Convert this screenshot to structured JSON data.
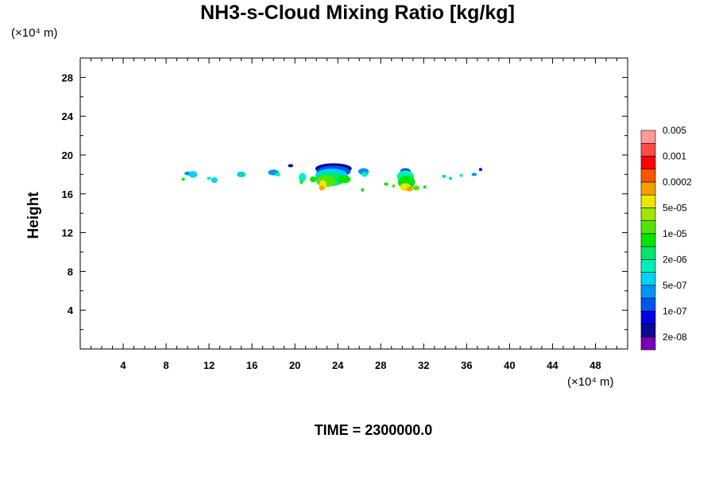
{
  "chart_data": {
    "type": "heatmap",
    "title": "NH3-s-Cloud Mixing Ratio [kg/kg]",
    "xlabel": "",
    "ylabel": "Height",
    "x_multiplier": "(×10⁴ m)",
    "y_multiplier": "(×10⁴ m)",
    "time_label": "TIME = 2300000.0",
    "xlim": [
      0,
      51
    ],
    "ylim": [
      0,
      30
    ],
    "x_ticks": [
      4,
      8,
      12,
      16,
      20,
      24,
      28,
      32,
      36,
      40,
      44,
      48
    ],
    "y_ticks": [
      4,
      8,
      12,
      16,
      20,
      24,
      28
    ],
    "grid": false,
    "legend_placement": "right",
    "colorbar": {
      "colors": [
        "#7a00b4",
        "#0a0a96",
        "#0000e6",
        "#0055ee",
        "#0095f5",
        "#00d2f5",
        "#00f0bc",
        "#00e66e",
        "#00e600",
        "#55e600",
        "#a0e600",
        "#f0e600",
        "#f5a000",
        "#ff5500",
        "#ff0000",
        "#ff4a4a",
        "#ff9a9a"
      ],
      "labels": [
        "2e-08",
        "1e-07",
        "5e-07",
        "2e-06",
        "1e-05",
        "5e-05",
        "0.0002",
        "0.001",
        "0.005"
      ]
    },
    "blobs": [
      {
        "x": 9.6,
        "y": 17.5,
        "rx": 0.15,
        "ry": 0.15,
        "level": 8
      },
      {
        "x": 10.0,
        "y": 18.1,
        "rx": 0.3,
        "ry": 0.2,
        "level": 4
      },
      {
        "x": 10.5,
        "y": 18.0,
        "rx": 0.4,
        "ry": 0.35,
        "level": 5
      },
      {
        "x": 12.0,
        "y": 17.6,
        "rx": 0.2,
        "ry": 0.15,
        "level": 6
      },
      {
        "x": 12.5,
        "y": 17.4,
        "rx": 0.3,
        "ry": 0.3,
        "level": 5
      },
      {
        "x": 15.0,
        "y": 18.0,
        "rx": 0.4,
        "ry": 0.3,
        "level": 5
      },
      {
        "x": 15.2,
        "y": 17.9,
        "rx": 0.15,
        "ry": 0.15,
        "level": 7
      },
      {
        "x": 18.0,
        "y": 18.2,
        "rx": 0.5,
        "ry": 0.3,
        "level": 4
      },
      {
        "x": 18.4,
        "y": 18.0,
        "rx": 0.25,
        "ry": 0.2,
        "level": 6
      },
      {
        "x": 20.7,
        "y": 17.7,
        "rx": 0.35,
        "ry": 0.45,
        "level": 6
      },
      {
        "x": 20.6,
        "y": 17.2,
        "rx": 0.15,
        "ry": 0.15,
        "level": 8
      },
      {
        "x": 19.6,
        "y": 18.9,
        "rx": 0.25,
        "ry": 0.12,
        "level": 1
      },
      {
        "x": 23.6,
        "y": 18.6,
        "rx": 1.7,
        "ry": 0.55,
        "level": 1
      },
      {
        "x": 23.6,
        "y": 18.3,
        "rx": 1.6,
        "ry": 0.6,
        "level": 3
      },
      {
        "x": 23.4,
        "y": 17.9,
        "rx": 1.5,
        "ry": 0.7,
        "level": 5
      },
      {
        "x": 23.3,
        "y": 17.5,
        "rx": 1.4,
        "ry": 0.7,
        "level": 7
      },
      {
        "x": 22.9,
        "y": 17.3,
        "rx": 0.9,
        "ry": 0.6,
        "level": 9
      },
      {
        "x": 22.6,
        "y": 16.9,
        "rx": 0.35,
        "ry": 0.5,
        "level": 11
      },
      {
        "x": 22.5,
        "y": 16.6,
        "rx": 0.25,
        "ry": 0.25,
        "level": 12
      },
      {
        "x": 24.6,
        "y": 17.5,
        "rx": 0.6,
        "ry": 0.4,
        "level": 8
      },
      {
        "x": 21.7,
        "y": 17.5,
        "rx": 0.3,
        "ry": 0.3,
        "level": 8
      },
      {
        "x": 26.4,
        "y": 18.3,
        "rx": 0.5,
        "ry": 0.35,
        "level": 4
      },
      {
        "x": 26.5,
        "y": 18.0,
        "rx": 0.3,
        "ry": 0.25,
        "level": 6
      },
      {
        "x": 26.3,
        "y": 16.4,
        "rx": 0.15,
        "ry": 0.12,
        "level": 8
      },
      {
        "x": 28.5,
        "y": 17.0,
        "rx": 0.2,
        "ry": 0.12,
        "level": 8
      },
      {
        "x": 29.2,
        "y": 16.8,
        "rx": 0.15,
        "ry": 0.12,
        "level": 9
      },
      {
        "x": 30.3,
        "y": 18.3,
        "rx": 0.5,
        "ry": 0.35,
        "level": 3
      },
      {
        "x": 30.3,
        "y": 17.8,
        "rx": 0.8,
        "ry": 0.6,
        "level": 6
      },
      {
        "x": 30.4,
        "y": 17.2,
        "rx": 0.8,
        "ry": 0.7,
        "level": 8
      },
      {
        "x": 30.3,
        "y": 16.7,
        "rx": 0.5,
        "ry": 0.4,
        "level": 11
      },
      {
        "x": 30.7,
        "y": 16.5,
        "rx": 0.3,
        "ry": 0.25,
        "level": 12
      },
      {
        "x": 31.3,
        "y": 16.6,
        "rx": 0.3,
        "ry": 0.25,
        "level": 9
      },
      {
        "x": 32.1,
        "y": 16.7,
        "rx": 0.15,
        "ry": 0.15,
        "level": 8
      },
      {
        "x": 33.9,
        "y": 17.8,
        "rx": 0.2,
        "ry": 0.15,
        "level": 5
      },
      {
        "x": 34.5,
        "y": 17.6,
        "rx": 0.15,
        "ry": 0.12,
        "level": 5
      },
      {
        "x": 35.5,
        "y": 17.9,
        "rx": 0.15,
        "ry": 0.12,
        "level": 6
      },
      {
        "x": 36.7,
        "y": 18.0,
        "rx": 0.25,
        "ry": 0.15,
        "level": 4
      },
      {
        "x": 37.3,
        "y": 18.5,
        "rx": 0.15,
        "ry": 0.15,
        "level": 2
      }
    ]
  }
}
